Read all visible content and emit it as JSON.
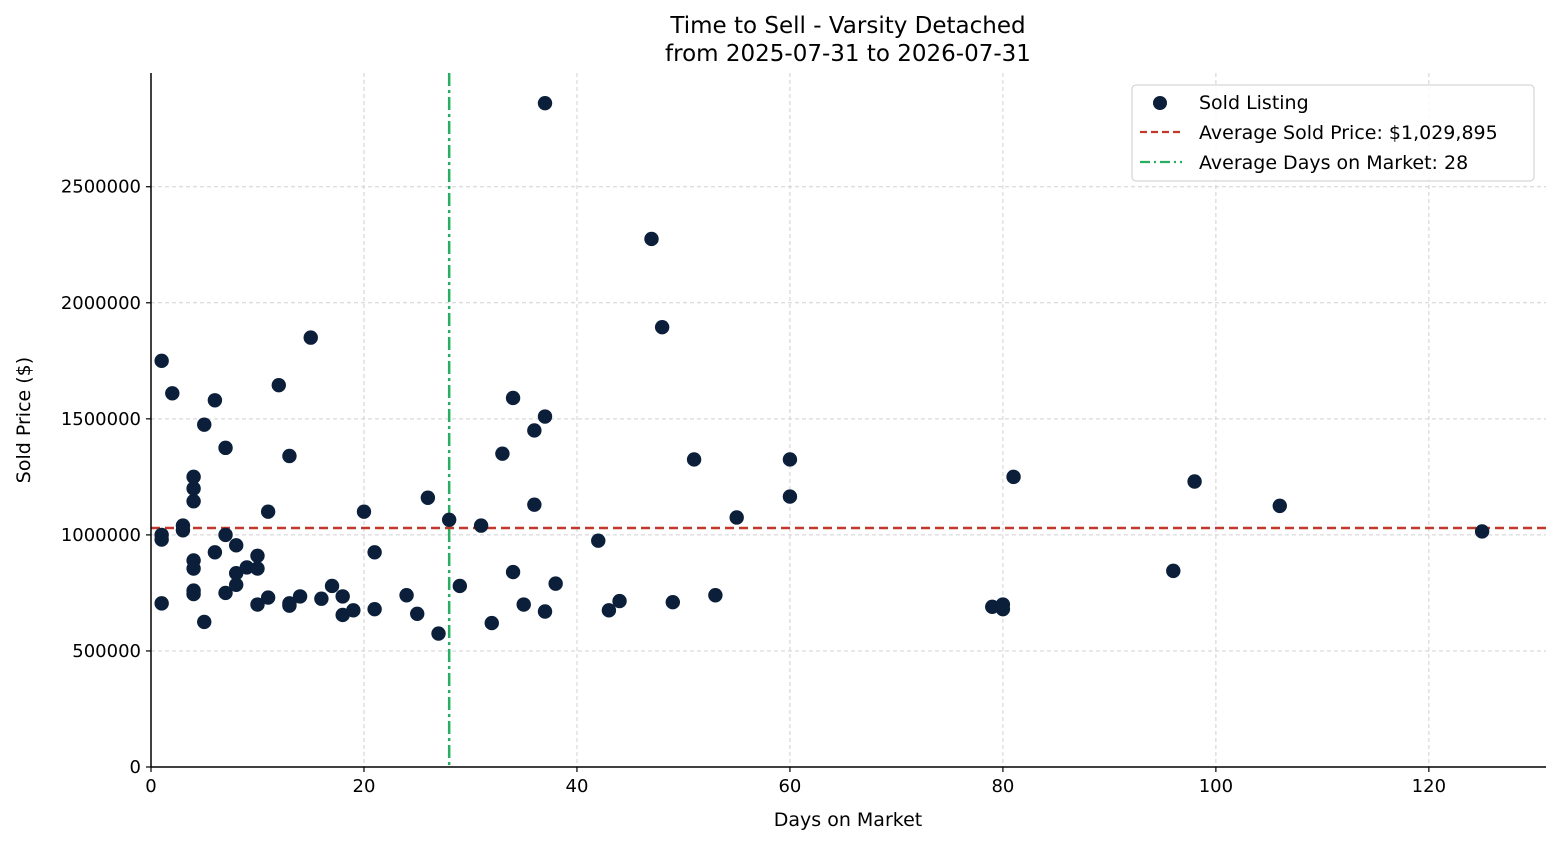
{
  "chart_data": {
    "type": "scatter",
    "title": "Time to Sell - Varsity Detached",
    "subtitle": "from 2025-07-31 to 2026-07-31",
    "xlabel": "Days on Market",
    "ylabel": "Sold Price ($)",
    "xlim": [
      0,
      131
    ],
    "ylim": [
      0,
      2990000
    ],
    "xticks": [
      0,
      20,
      40,
      60,
      80,
      100,
      120
    ],
    "yticks": [
      0,
      500000,
      1000000,
      1500000,
      2000000,
      2500000
    ],
    "grid": true,
    "legend_position": "top-right",
    "colors": {
      "points": "#0b1f3a",
      "avg_price_line": "#c0392b",
      "avg_days_line": "#27ae60"
    },
    "reference_lines": {
      "avg_price": {
        "value": 1029895,
        "label": "Average Sold Price: $1,029,895"
      },
      "avg_days": {
        "value": 28,
        "label": "Average Days on Market: 28"
      }
    },
    "series": [
      {
        "name": "Sold Listing",
        "points": [
          [
            1,
            1750000
          ],
          [
            1,
            980000
          ],
          [
            1,
            1000000
          ],
          [
            1,
            705000
          ],
          [
            2,
            1610000
          ],
          [
            3,
            1040000
          ],
          [
            3,
            1020000
          ],
          [
            4,
            1250000
          ],
          [
            4,
            1200000
          ],
          [
            4,
            1145000
          ],
          [
            4,
            890000
          ],
          [
            4,
            855000
          ],
          [
            4,
            760000
          ],
          [
            4,
            745000
          ],
          [
            5,
            1475000
          ],
          [
            5,
            625000
          ],
          [
            6,
            1580000
          ],
          [
            6,
            925000
          ],
          [
            7,
            1375000
          ],
          [
            7,
            1000000
          ],
          [
            7,
            750000
          ],
          [
            8,
            955000
          ],
          [
            8,
            835000
          ],
          [
            8,
            785000
          ],
          [
            9,
            860000
          ],
          [
            10,
            910000
          ],
          [
            10,
            855000
          ],
          [
            10,
            700000
          ],
          [
            11,
            1100000
          ],
          [
            11,
            730000
          ],
          [
            12,
            1645000
          ],
          [
            13,
            1340000
          ],
          [
            13,
            705000
          ],
          [
            13,
            695000
          ],
          [
            14,
            735000
          ],
          [
            15,
            1850000
          ],
          [
            16,
            725000
          ],
          [
            17,
            780000
          ],
          [
            18,
            735000
          ],
          [
            18,
            655000
          ],
          [
            19,
            675000
          ],
          [
            20,
            1100000
          ],
          [
            21,
            925000
          ],
          [
            21,
            680000
          ],
          [
            24,
            740000
          ],
          [
            25,
            660000
          ],
          [
            26,
            1160000
          ],
          [
            27,
            575000
          ],
          [
            28,
            1065000
          ],
          [
            29,
            780000
          ],
          [
            31,
            1040000
          ],
          [
            32,
            620000
          ],
          [
            33,
            1350000
          ],
          [
            34,
            1590000
          ],
          [
            34,
            840000
          ],
          [
            35,
            700000
          ],
          [
            36,
            1450000
          ],
          [
            36,
            1130000
          ],
          [
            37,
            2860000
          ],
          [
            37,
            1510000
          ],
          [
            37,
            670000
          ],
          [
            38,
            790000
          ],
          [
            42,
            975000
          ],
          [
            43,
            675000
          ],
          [
            44,
            715000
          ],
          [
            47,
            2275000
          ],
          [
            48,
            1895000
          ],
          [
            49,
            710000
          ],
          [
            51,
            1325000
          ],
          [
            53,
            740000
          ],
          [
            55,
            1075000
          ],
          [
            60,
            1325000
          ],
          [
            60,
            1165000
          ],
          [
            79,
            690000
          ],
          [
            80,
            700000
          ],
          [
            80,
            680000
          ],
          [
            81,
            1250000
          ],
          [
            96,
            845000
          ],
          [
            98,
            1230000
          ],
          [
            106,
            1125000
          ],
          [
            125,
            1015000
          ]
        ]
      }
    ]
  }
}
